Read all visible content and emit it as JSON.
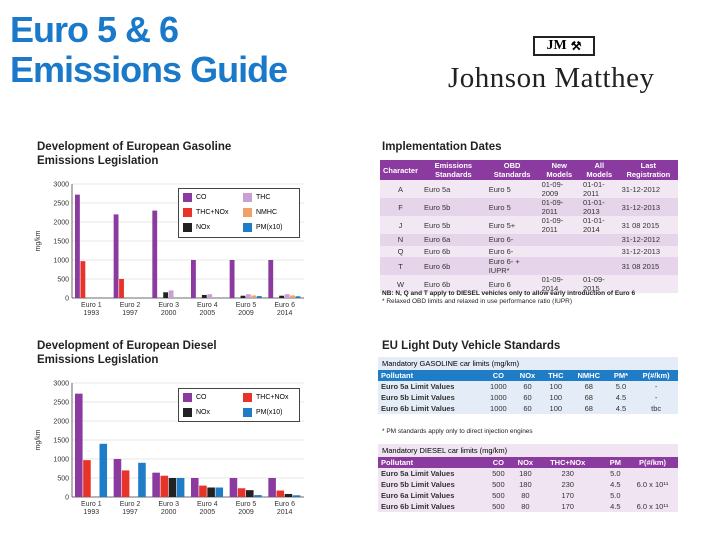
{
  "header": {
    "title_line1": "Euro  5 & 6",
    "title_line2": "Emissions Guide",
    "logo_mark": "JM",
    "company": "Johnson Matthey"
  },
  "gasoline_section": {
    "title_line1": "Development of European Gasoline",
    "title_line2": "Emissions Legislation"
  },
  "diesel_section": {
    "title_line1": "Development of European Diesel",
    "title_line2": "Emissions Legislation"
  },
  "chart_data": [
    {
      "type": "bar",
      "title": "Development of European Gasoline Emissions Legislation",
      "ylabel": "mg/km",
      "ylim": [
        0,
        3000
      ],
      "yticks": [
        0,
        500,
        1000,
        1500,
        2000,
        2500,
        3000
      ],
      "categories": [
        "Euro 1\n1993",
        "Euro 2\n1997",
        "Euro 3\n2000",
        "Euro 4\n2005",
        "Euro 5\n2009",
        "Euro 6\n2014"
      ],
      "series": [
        {
          "name": "CO",
          "color": "#8b3aa0",
          "values": [
            2720,
            2200,
            2300,
            1000,
            1000,
            1000
          ]
        },
        {
          "name": "THC+NOx",
          "color": "#e8332a",
          "values": [
            970,
            500,
            null,
            null,
            null,
            null
          ]
        },
        {
          "name": "NOx",
          "color": "#222222",
          "values": [
            null,
            null,
            150,
            80,
            60,
            60
          ]
        },
        {
          "name": "THC",
          "color": "#c9a0d6",
          "values": [
            null,
            null,
            200,
            100,
            100,
            100
          ]
        },
        {
          "name": "NMHC",
          "color": "#f2a06a",
          "values": [
            null,
            null,
            null,
            null,
            68,
            68
          ]
        },
        {
          "name": "PM(x10)",
          "color": "#1f7cc6",
          "values": [
            null,
            null,
            null,
            null,
            50,
            45
          ]
        }
      ]
    },
    {
      "type": "bar",
      "title": "Development of European Diesel Emissions Legislation",
      "ylabel": "mg/km",
      "ylim": [
        0,
        3000
      ],
      "yticks": [
        0,
        500,
        1000,
        1500,
        2000,
        2500,
        3000
      ],
      "categories": [
        "Euro 1\n1993",
        "Euro 2\n1997",
        "Euro 3\n2000",
        "Euro 4\n2005",
        "Euro 5\n2009",
        "Euro 6\n2014"
      ],
      "series": [
        {
          "name": "CO",
          "color": "#8b3aa0",
          "values": [
            2720,
            1000,
            640,
            500,
            500,
            500
          ]
        },
        {
          "name": "THC+NOx",
          "color": "#e8332a",
          "values": [
            970,
            700,
            560,
            300,
            230,
            170
          ]
        },
        {
          "name": "NOx",
          "color": "#222222",
          "values": [
            null,
            null,
            500,
            250,
            180,
            80
          ]
        },
        {
          "name": "PM(x10)",
          "color": "#1f7cc6",
          "values": [
            1400,
            900,
            500,
            250,
            50,
            45
          ]
        }
      ]
    }
  ],
  "gas_legend": [
    "CO",
    "THC",
    "THC+NOx",
    "NMHC",
    "NOx",
    "PM(x10)"
  ],
  "diesel_legend": [
    "CO",
    "THC+NOx",
    "NOx",
    "PM(x10)"
  ],
  "implementation": {
    "title": "Implementation Dates",
    "headers": [
      "Character",
      "Emissions Standards",
      "OBD Standards",
      "New Models",
      "All Models",
      "Last Registration"
    ],
    "rows": [
      [
        "A",
        "Euro 5a",
        "Euro 5",
        "01-09-2009",
        "01-01-2011",
        "31-12-2012"
      ],
      [
        "F",
        "Euro 5b",
        "Euro 5",
        "01-09-2011",
        "01-01-2013",
        "31-12-2013"
      ],
      [
        "J",
        "Euro 5b",
        "Euro 5+",
        "01-09-2011",
        "01-01-2014",
        "31 08 2015"
      ],
      [
        "N",
        "Euro 6a",
        "Euro 6-",
        "",
        "",
        "31-12-2012"
      ],
      [
        "Q",
        "Euro 6b",
        "Euro 6-",
        "",
        "",
        "31-12-2013"
      ],
      [
        "T",
        "Euro 6b",
        "Euro 6- + IUPR*",
        "",
        "",
        "31 08 2015"
      ],
      [
        "W",
        "Euro 6b",
        "Euro 6",
        "01-09-2014",
        "01-09-2015",
        ""
      ]
    ],
    "note1": "NB: N, Q and T apply to DIESEL vehicles only to allow early introduction of Euro 6",
    "note2": "* Relaxed OBD limits and relaxed in use performance ratio (IUPR)"
  },
  "ld_standards": {
    "title": "EU Light Duty Vehicle Standards",
    "gasoline_caption": "Mandatory GASOLINE car limits (mg/km)",
    "gasoline_headers": [
      "Pollutant",
      "CO",
      "NOx",
      "THC",
      "NMHC",
      "PM*",
      "P(#/km)"
    ],
    "gasoline_rows": [
      [
        "Euro 5a Limit Values",
        "1000",
        "60",
        "100",
        "68",
        "5.0",
        "-"
      ],
      [
        "Euro 5b Limit Values",
        "1000",
        "60",
        "100",
        "68",
        "4.5",
        "-"
      ],
      [
        "Euro 6b Limit Values",
        "1000",
        "60",
        "100",
        "68",
        "4.5",
        "tbc"
      ]
    ],
    "gasoline_note": "* PM standards apply only to direct injection engines",
    "diesel_caption": "Mandatory DIESEL car limits (mg/km)",
    "diesel_headers": [
      "Pollutant",
      "CO",
      "NOx",
      "THC+NOx",
      "",
      "PM",
      "P(#/km)"
    ],
    "diesel_rows": [
      [
        "Euro 5a Limit Values",
        "500",
        "180",
        "230",
        "",
        "5.0",
        ""
      ],
      [
        "Euro 5b Limit Values",
        "500",
        "180",
        "230",
        "",
        "4.5",
        "6.0 x 10¹¹"
      ],
      [
        "Euro 6a Limit Values",
        "500",
        "80",
        "170",
        "",
        "5.0",
        ""
      ],
      [
        "Euro 6b Limit Values",
        "500",
        "80",
        "170",
        "",
        "4.5",
        "6.0 x 10¹¹"
      ]
    ]
  }
}
